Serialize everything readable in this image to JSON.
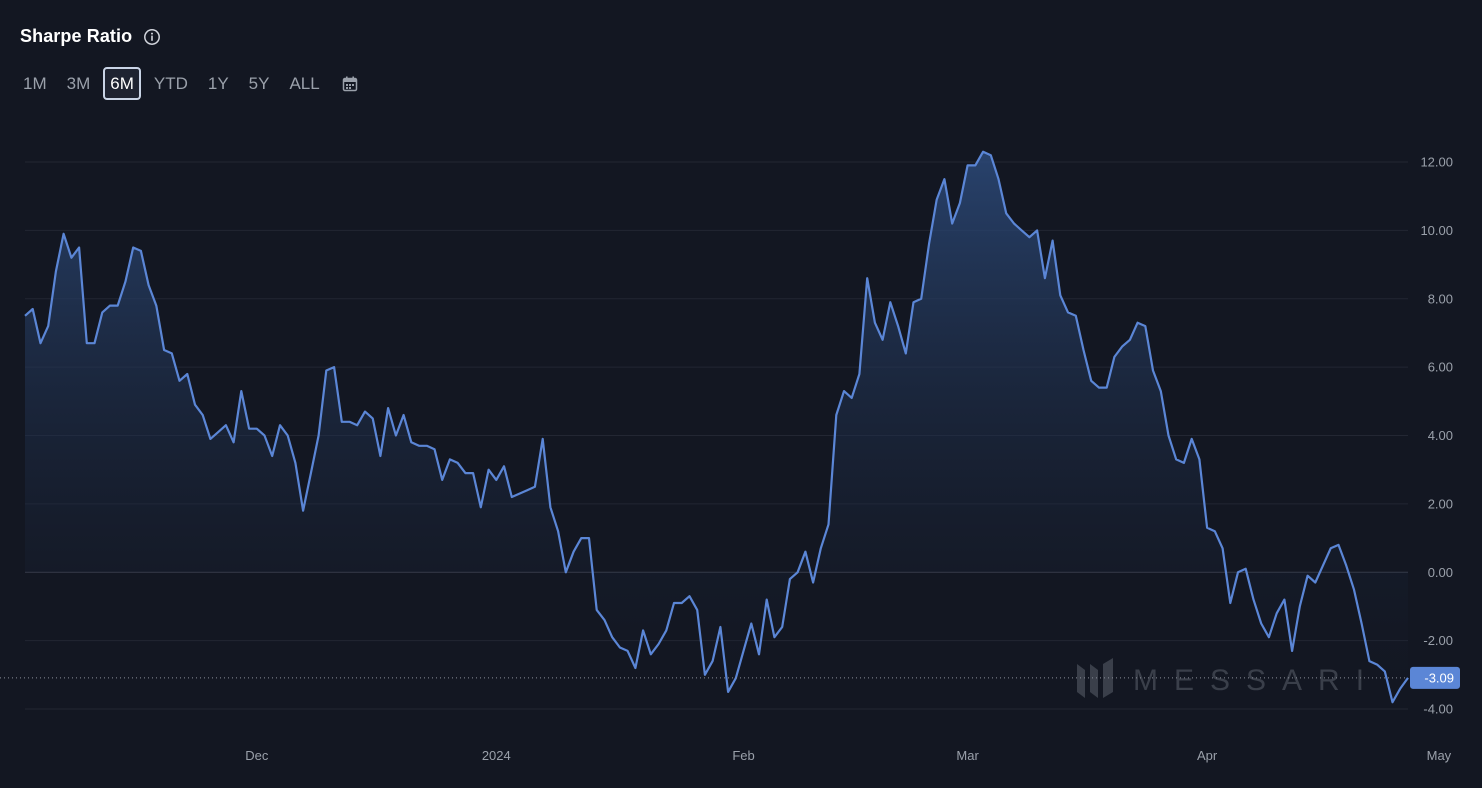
{
  "header": {
    "title": "Sharpe Ratio",
    "info_icon": "info-circle-icon"
  },
  "range_selector": {
    "options": [
      "1M",
      "3M",
      "6M",
      "YTD",
      "1Y",
      "5Y",
      "ALL"
    ],
    "selected": "6M",
    "calendar_icon": "calendar-icon"
  },
  "watermark": {
    "text": "MESSARI"
  },
  "colors": {
    "background": "#131722",
    "line": "#5b86d6",
    "badge": "#5b86d6",
    "grid": "#2a2e39"
  },
  "chart_data": {
    "type": "area",
    "ylim": [
      -4.0,
      12.0
    ],
    "yticks": [
      "12.00",
      "10.00",
      "8.00",
      "6.00",
      "4.00",
      "2.00",
      "0.00",
      "-2.00",
      "-4.00"
    ],
    "x_ticks": [
      {
        "label": "Dec",
        "index": 30
      },
      {
        "label": "2024",
        "index": 61
      },
      {
        "label": "Feb",
        "index": 93
      },
      {
        "label": "Mar",
        "index": 122
      },
      {
        "label": "Apr",
        "index": 153
      },
      {
        "label": "May",
        "index": 183
      }
    ],
    "last_value_label": "-3.09",
    "last_value": -3.09,
    "series": [
      {
        "values": [
          7.5,
          7.7,
          6.7,
          7.2,
          8.8,
          9.9,
          9.2,
          9.5,
          6.7,
          6.7,
          7.6,
          7.8,
          7.8,
          8.5,
          9.5,
          9.4,
          8.4,
          7.8,
          6.5,
          6.4,
          5.6,
          5.8,
          4.9,
          4.6,
          3.9,
          4.1,
          4.3,
          3.8,
          5.3,
          4.2,
          4.2,
          4.0,
          3.4,
          4.3,
          4.0,
          3.2,
          1.8,
          2.9,
          4.0,
          5.9,
          6.0,
          4.4,
          4.4,
          4.3,
          4.7,
          4.5,
          3.4,
          4.8,
          4.0,
          4.6,
          3.8,
          3.7,
          3.7,
          3.6,
          2.7,
          3.3,
          3.2,
          2.9,
          2.9,
          1.9,
          3.0,
          2.7,
          3.1,
          2.2,
          2.3,
          2.4,
          2.5,
          3.9,
          1.9,
          1.2,
          0.0,
          0.6,
          1.0,
          1.0,
          -1.1,
          -1.4,
          -1.9,
          -2.2,
          -2.3,
          -2.8,
          -1.7,
          -2.4,
          -2.1,
          -1.7,
          -0.9,
          -0.9,
          -0.7,
          -1.1,
          -3.0,
          -2.6,
          -1.6,
          -3.5,
          -3.1,
          -2.3,
          -1.5,
          -2.4,
          -0.8,
          -1.9,
          -1.6,
          -0.2,
          0.0,
          0.6,
          -0.3,
          0.7,
          1.4,
          4.6,
          5.3,
          5.1,
          5.8,
          8.6,
          7.3,
          6.8,
          7.9,
          7.2,
          6.4,
          7.9,
          8.0,
          9.6,
          10.9,
          11.5,
          10.2,
          10.8,
          11.9,
          11.9,
          12.3,
          12.2,
          11.5,
          10.5,
          10.2,
          10.0,
          9.8,
          10.0,
          8.6,
          9.7,
          8.1,
          7.6,
          7.5,
          6.5,
          5.6,
          5.4,
          5.4,
          6.3,
          6.6,
          6.8,
          7.3,
          7.2,
          5.9,
          5.3,
          4.0,
          3.3,
          3.2,
          3.9,
          3.3,
          1.3,
          1.2,
          0.7,
          -0.9,
          0.0,
          0.1,
          -0.8,
          -1.5,
          -1.9,
          -1.2,
          -0.8,
          -2.3,
          -1.0,
          -0.1,
          -0.3,
          0.2,
          0.7,
          0.8,
          0.2,
          -0.5,
          -1.5,
          -2.6,
          -2.7,
          -2.9,
          -3.8,
          -3.4,
          -3.09
        ]
      }
    ]
  }
}
